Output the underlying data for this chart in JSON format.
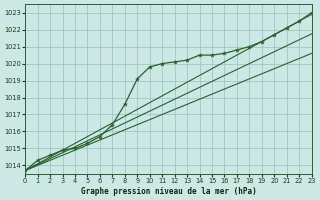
{
  "title": "Graphe pression niveau de la mer (hPa)",
  "bg_color": "#cbe8e4",
  "grid_color": "#9dc8c0",
  "line_color": "#2a6030",
  "xlim": [
    0,
    23
  ],
  "ylim": [
    1013.5,
    1023.5
  ],
  "yticks": [
    1014,
    1015,
    1016,
    1017,
    1018,
    1019,
    1020,
    1021,
    1022,
    1023
  ],
  "xticks": [
    0,
    1,
    2,
    3,
    4,
    5,
    6,
    7,
    8,
    9,
    10,
    11,
    12,
    13,
    14,
    15,
    16,
    17,
    18,
    19,
    20,
    21,
    22,
    23
  ],
  "marker_line": [
    1013.7,
    1014.3,
    1014.6,
    1014.9,
    1015.0,
    1015.3,
    1015.7,
    1016.4,
    1017.6,
    1019.1,
    1019.8,
    1020.0,
    1020.1,
    1020.2,
    1020.5,
    1020.5,
    1020.6,
    1020.8,
    1021.0,
    1021.3,
    1021.7,
    1022.1,
    1022.5,
    1023.0
  ],
  "straight_lines": [
    [
      1013.7,
      1014.05,
      1014.4,
      1014.75,
      1015.1,
      1015.45,
      1015.8,
      1016.15,
      1016.5,
      1016.85,
      1017.2,
      1017.55,
      1017.9,
      1018.25,
      1018.6,
      1018.95,
      1019.3,
      1019.65,
      1020.0,
      1020.35,
      1020.7,
      1021.05,
      1021.4,
      1021.75
    ],
    [
      1013.7,
      1014.1,
      1014.5,
      1014.9,
      1015.3,
      1015.7,
      1016.1,
      1016.5,
      1016.9,
      1017.3,
      1017.7,
      1018.1,
      1018.5,
      1018.9,
      1019.3,
      1019.7,
      1020.1,
      1020.5,
      1020.9,
      1021.3,
      1021.7,
      1022.1,
      1022.5,
      1022.9
    ],
    [
      1013.7,
      1014.0,
      1014.3,
      1014.6,
      1014.9,
      1015.2,
      1015.5,
      1015.8,
      1016.1,
      1016.4,
      1016.7,
      1017.0,
      1017.3,
      1017.6,
      1017.9,
      1018.2,
      1018.5,
      1018.8,
      1019.1,
      1019.4,
      1019.7,
      1020.0,
      1020.3,
      1020.6
    ]
  ]
}
